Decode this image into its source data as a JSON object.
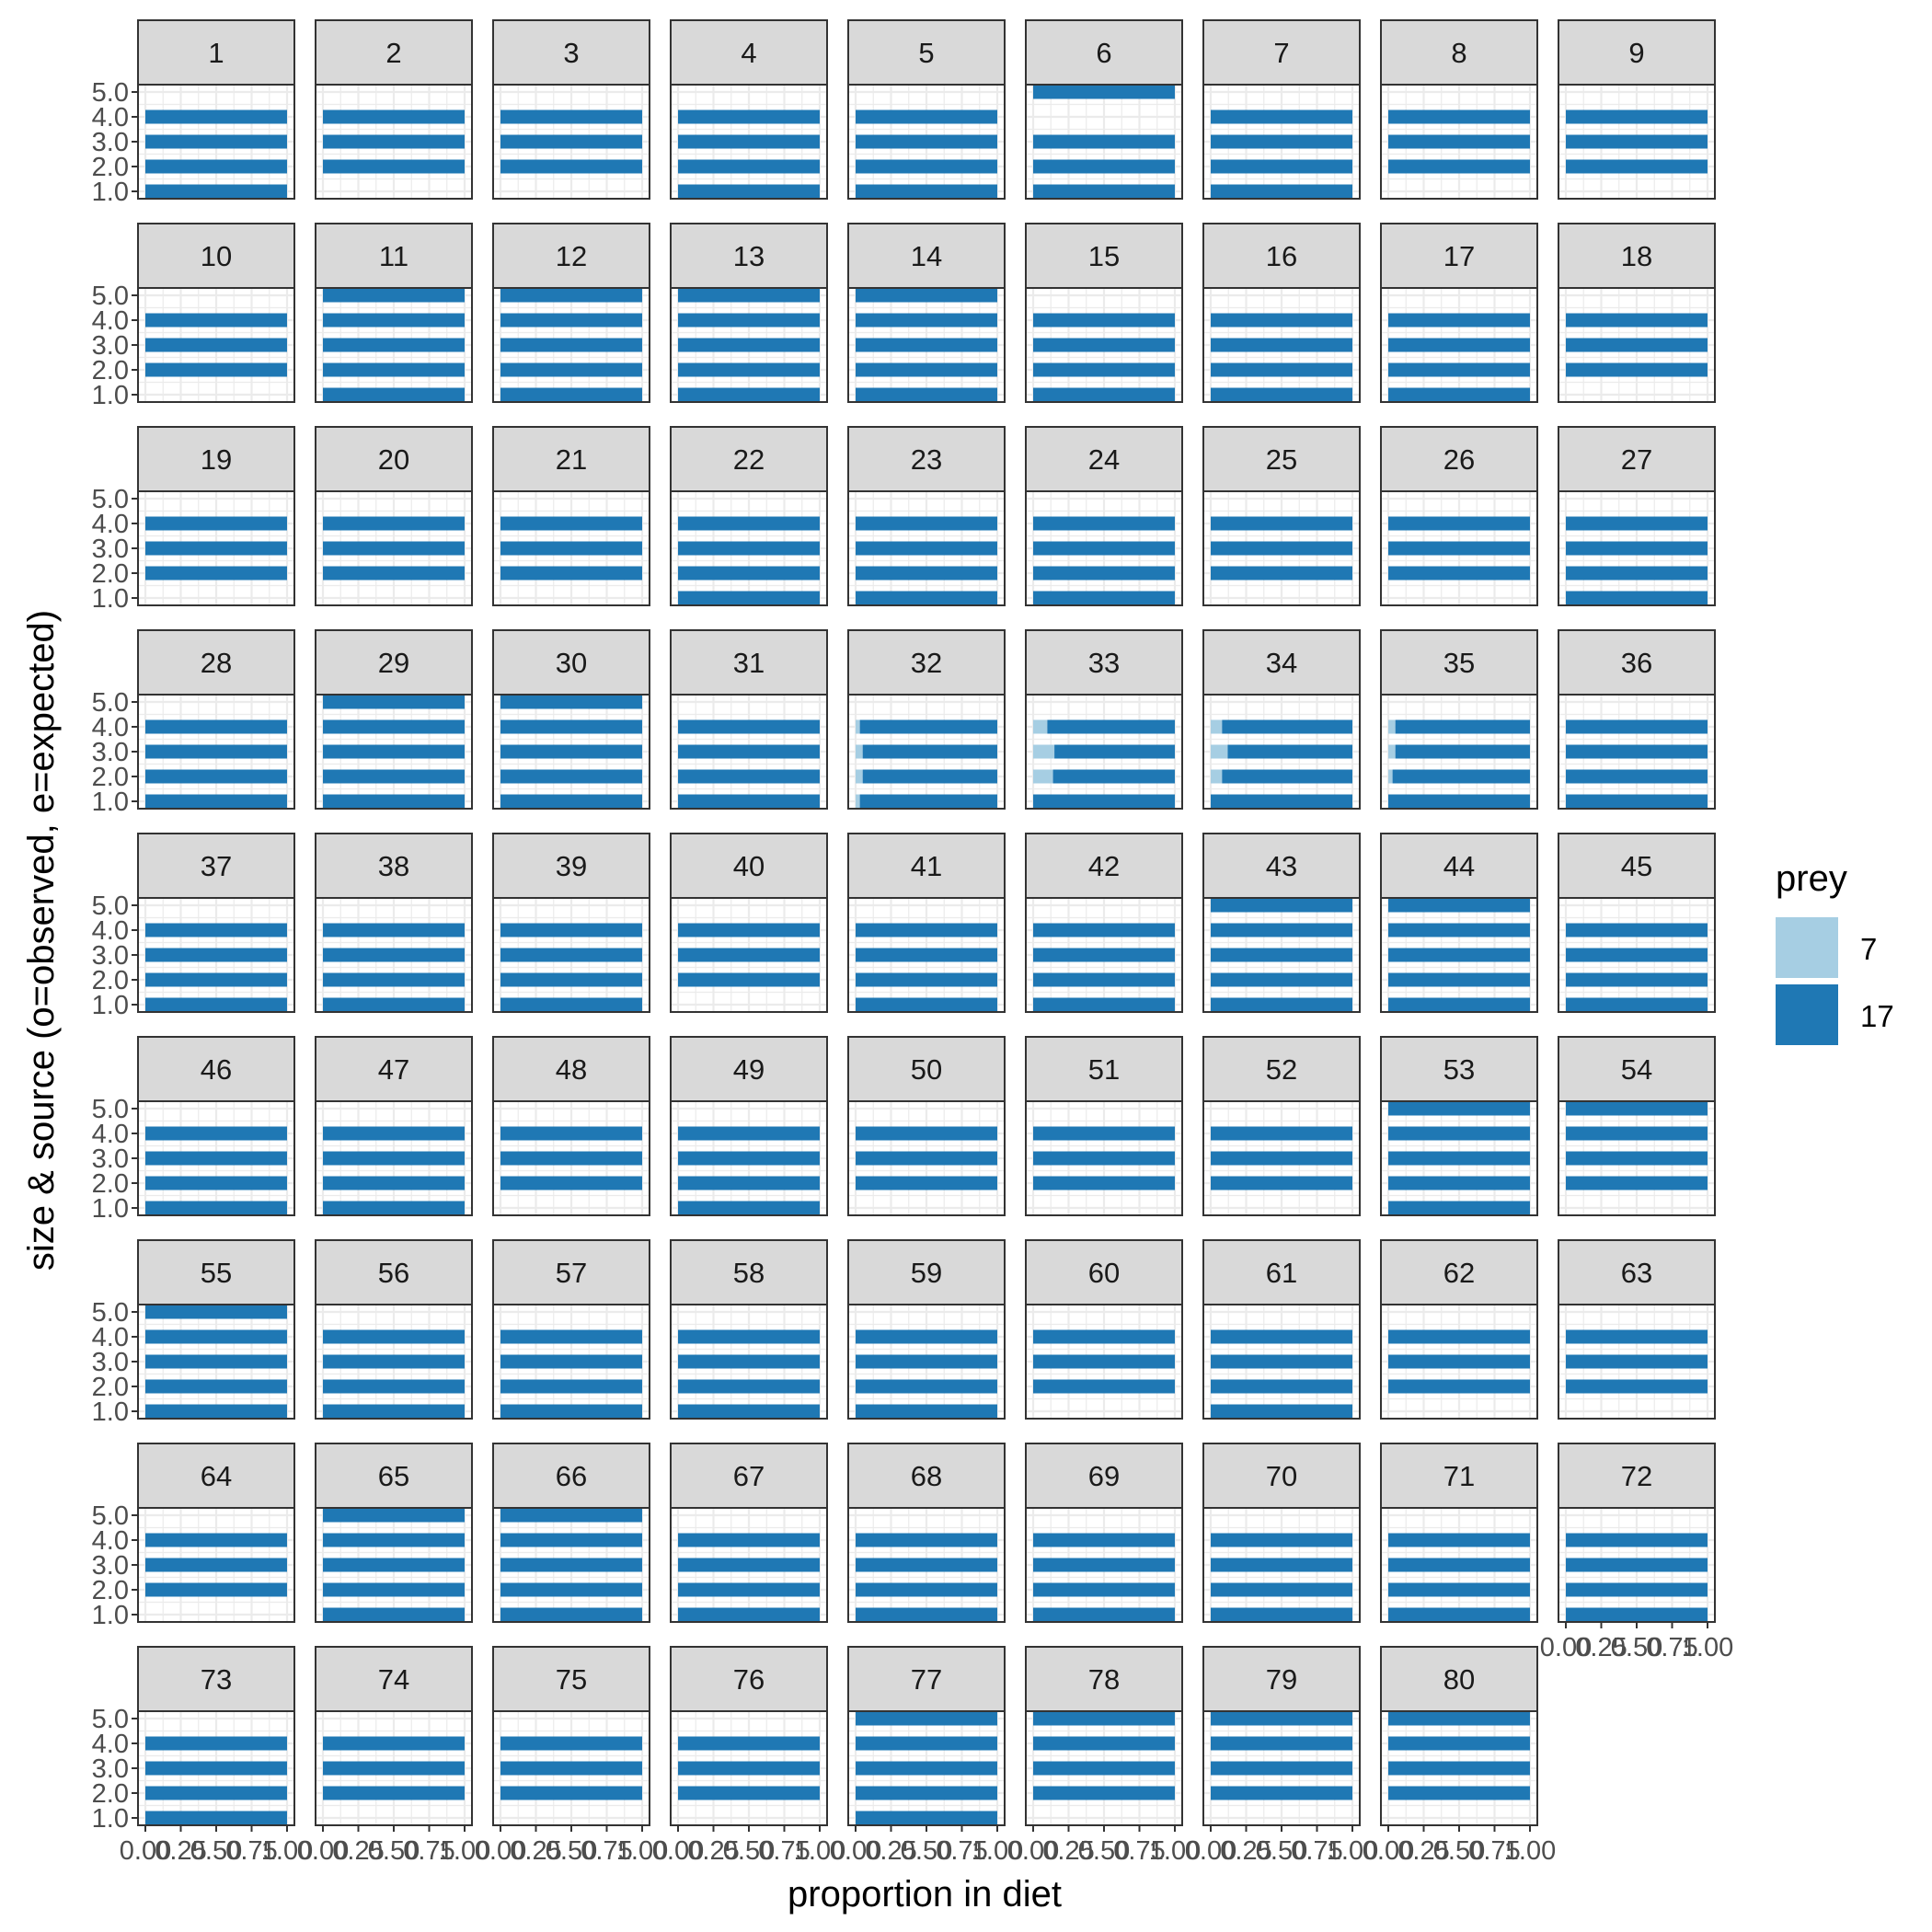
{
  "chart_data": {
    "type": "bar",
    "orientation": "horizontal",
    "layout": "facet_wrap",
    "facet_cols": 9,
    "xlabel": "proportion in diet",
    "ylabel": "size & source (o=observed, e=expected)",
    "xlim": [
      0,
      1
    ],
    "ylim": [
      1,
      5
    ],
    "x_ticks": [
      "0.00",
      "0.25",
      "0.50",
      "0.75",
      "1.00"
    ],
    "y_ticks": [
      "1.0",
      "2.0",
      "3.0",
      "4.0",
      "5.0"
    ],
    "grid": true,
    "legend": {
      "title": "prey",
      "position": "right",
      "items": [
        {
          "label": "7",
          "color": "#a6cee3"
        },
        {
          "label": "17",
          "color": "#1f78b4"
        }
      ]
    },
    "facets": [
      {
        "label": "1",
        "rows": [
          1,
          2,
          3,
          4
        ],
        "prey7": []
      },
      {
        "label": "2",
        "rows": [
          2,
          3,
          4
        ],
        "prey7": []
      },
      {
        "label": "3",
        "rows": [
          2,
          3,
          4
        ],
        "prey7": []
      },
      {
        "label": "4",
        "rows": [
          1,
          2,
          3,
          4
        ],
        "prey7": []
      },
      {
        "label": "5",
        "rows": [
          1,
          2,
          3,
          4
        ],
        "prey7": []
      },
      {
        "label": "6",
        "rows": [
          1,
          2,
          3,
          5
        ],
        "prey7": []
      },
      {
        "label": "7",
        "rows": [
          1,
          2,
          3,
          4
        ],
        "prey7": []
      },
      {
        "label": "8",
        "rows": [
          2,
          3,
          4
        ],
        "prey7": []
      },
      {
        "label": "9",
        "rows": [
          2,
          3,
          4
        ],
        "prey7": []
      },
      {
        "label": "10",
        "rows": [
          2,
          3,
          4
        ],
        "prey7": []
      },
      {
        "label": "11",
        "rows": [
          1,
          2,
          3,
          4,
          5
        ],
        "prey7": []
      },
      {
        "label": "12",
        "rows": [
          1,
          2,
          3,
          4,
          5
        ],
        "prey7": []
      },
      {
        "label": "13",
        "rows": [
          1,
          2,
          3,
          4,
          5
        ],
        "prey7": []
      },
      {
        "label": "14",
        "rows": [
          1,
          2,
          3,
          4,
          5
        ],
        "prey7": []
      },
      {
        "label": "15",
        "rows": [
          1,
          2,
          3,
          4
        ],
        "prey7": []
      },
      {
        "label": "16",
        "rows": [
          1,
          2,
          3,
          4
        ],
        "prey7": []
      },
      {
        "label": "17",
        "rows": [
          1,
          2,
          3,
          4
        ],
        "prey7": []
      },
      {
        "label": "18",
        "rows": [
          2,
          3,
          4
        ],
        "prey7": []
      },
      {
        "label": "19",
        "rows": [
          2,
          3,
          4
        ],
        "prey7": []
      },
      {
        "label": "20",
        "rows": [
          2,
          3,
          4
        ],
        "prey7": []
      },
      {
        "label": "21",
        "rows": [
          2,
          3,
          4
        ],
        "prey7": []
      },
      {
        "label": "22",
        "rows": [
          1,
          2,
          3,
          4
        ],
        "prey7": []
      },
      {
        "label": "23",
        "rows": [
          1,
          2,
          3,
          4
        ],
        "prey7": []
      },
      {
        "label": "24",
        "rows": [
          1,
          2,
          3,
          4
        ],
        "prey7": []
      },
      {
        "label": "25",
        "rows": [
          2,
          3,
          4
        ],
        "prey7": []
      },
      {
        "label": "26",
        "rows": [
          2,
          3,
          4
        ],
        "prey7": []
      },
      {
        "label": "27",
        "rows": [
          1,
          2,
          3,
          4
        ],
        "prey7": []
      },
      {
        "label": "28",
        "rows": [
          1,
          2,
          3,
          4
        ],
        "prey7": []
      },
      {
        "label": "29",
        "rows": [
          1,
          2,
          3,
          4,
          5
        ],
        "prey7": []
      },
      {
        "label": "30",
        "rows": [
          1,
          2,
          3,
          4,
          5
        ],
        "prey7": []
      },
      {
        "label": "31",
        "rows": [
          1,
          2,
          3,
          4
        ],
        "prey7": []
      },
      {
        "label": "32",
        "rows": [
          1,
          2,
          3,
          4
        ],
        "prey7": [
          {
            "row": 1,
            "value": 0.03
          },
          {
            "row": 2,
            "value": 0.05
          },
          {
            "row": 3,
            "value": 0.05
          },
          {
            "row": 4,
            "value": 0.03
          }
        ]
      },
      {
        "label": "33",
        "rows": [
          1,
          2,
          3,
          4
        ],
        "prey7": [
          {
            "row": 2,
            "value": 0.14
          },
          {
            "row": 3,
            "value": 0.15
          },
          {
            "row": 4,
            "value": 0.1
          }
        ]
      },
      {
        "label": "34",
        "rows": [
          1,
          2,
          3,
          4
        ],
        "prey7": [
          {
            "row": 2,
            "value": 0.08
          },
          {
            "row": 3,
            "value": 0.12
          },
          {
            "row": 4,
            "value": 0.08
          }
        ]
      },
      {
        "label": "35",
        "rows": [
          1,
          2,
          3,
          4
        ],
        "prey7": [
          {
            "row": 2,
            "value": 0.03
          },
          {
            "row": 3,
            "value": 0.05
          },
          {
            "row": 4,
            "value": 0.05
          }
        ]
      },
      {
        "label": "36",
        "rows": [
          1,
          2,
          3,
          4
        ],
        "prey7": []
      },
      {
        "label": "37",
        "rows": [
          1,
          2,
          3,
          4
        ],
        "prey7": []
      },
      {
        "label": "38",
        "rows": [
          1,
          2,
          3,
          4
        ],
        "prey7": []
      },
      {
        "label": "39",
        "rows": [
          1,
          2,
          3,
          4
        ],
        "prey7": []
      },
      {
        "label": "40",
        "rows": [
          2,
          3,
          4
        ],
        "prey7": []
      },
      {
        "label": "41",
        "rows": [
          1,
          2,
          3,
          4
        ],
        "prey7": []
      },
      {
        "label": "42",
        "rows": [
          1,
          2,
          3,
          4
        ],
        "prey7": []
      },
      {
        "label": "43",
        "rows": [
          1,
          2,
          3,
          4,
          5
        ],
        "prey7": []
      },
      {
        "label": "44",
        "rows": [
          1,
          2,
          3,
          4,
          5
        ],
        "prey7": []
      },
      {
        "label": "45",
        "rows": [
          1,
          2,
          3,
          4
        ],
        "prey7": []
      },
      {
        "label": "46",
        "rows": [
          1,
          2,
          3,
          4
        ],
        "prey7": []
      },
      {
        "label": "47",
        "rows": [
          1,
          2,
          3,
          4
        ],
        "prey7": []
      },
      {
        "label": "48",
        "rows": [
          2,
          3,
          4
        ],
        "prey7": []
      },
      {
        "label": "49",
        "rows": [
          1,
          2,
          3,
          4
        ],
        "prey7": []
      },
      {
        "label": "50",
        "rows": [
          2,
          3,
          4
        ],
        "prey7": []
      },
      {
        "label": "51",
        "rows": [
          2,
          3,
          4
        ],
        "prey7": []
      },
      {
        "label": "52",
        "rows": [
          2,
          3,
          4
        ],
        "prey7": []
      },
      {
        "label": "53",
        "rows": [
          1,
          2,
          3,
          4,
          5
        ],
        "prey7": []
      },
      {
        "label": "54",
        "rows": [
          2,
          3,
          4,
          5
        ],
        "prey7": []
      },
      {
        "label": "55",
        "rows": [
          1,
          2,
          3,
          4,
          5
        ],
        "prey7": []
      },
      {
        "label": "56",
        "rows": [
          1,
          2,
          3,
          4
        ],
        "prey7": []
      },
      {
        "label": "57",
        "rows": [
          1,
          2,
          3,
          4
        ],
        "prey7": []
      },
      {
        "label": "58",
        "rows": [
          1,
          2,
          3,
          4
        ],
        "prey7": []
      },
      {
        "label": "59",
        "rows": [
          1,
          2,
          3,
          4
        ],
        "prey7": []
      },
      {
        "label": "60",
        "rows": [
          2,
          3,
          4
        ],
        "prey7": []
      },
      {
        "label": "61",
        "rows": [
          1,
          2,
          3,
          4
        ],
        "prey7": []
      },
      {
        "label": "62",
        "rows": [
          2,
          3,
          4
        ],
        "prey7": []
      },
      {
        "label": "63",
        "rows": [
          2,
          3,
          4
        ],
        "prey7": []
      },
      {
        "label": "64",
        "rows": [
          2,
          3,
          4
        ],
        "prey7": []
      },
      {
        "label": "65",
        "rows": [
          1,
          2,
          3,
          4,
          5
        ],
        "prey7": []
      },
      {
        "label": "66",
        "rows": [
          1,
          2,
          3,
          4,
          5
        ],
        "prey7": []
      },
      {
        "label": "67",
        "rows": [
          1,
          2,
          3,
          4
        ],
        "prey7": []
      },
      {
        "label": "68",
        "rows": [
          1,
          2,
          3,
          4
        ],
        "prey7": []
      },
      {
        "label": "69",
        "rows": [
          1,
          2,
          3,
          4
        ],
        "prey7": []
      },
      {
        "label": "70",
        "rows": [
          1,
          2,
          3,
          4
        ],
        "prey7": []
      },
      {
        "label": "71",
        "rows": [
          1,
          2,
          3,
          4
        ],
        "prey7": []
      },
      {
        "label": "72",
        "rows": [
          1,
          2,
          3,
          4
        ],
        "prey7": []
      },
      {
        "label": "73",
        "rows": [
          1,
          2,
          3,
          4
        ],
        "prey7": []
      },
      {
        "label": "74",
        "rows": [
          2,
          3,
          4
        ],
        "prey7": []
      },
      {
        "label": "75",
        "rows": [
          2,
          3,
          4
        ],
        "prey7": []
      },
      {
        "label": "76",
        "rows": [
          2,
          3,
          4
        ],
        "prey7": []
      },
      {
        "label": "77",
        "rows": [
          1,
          2,
          3,
          4,
          5
        ],
        "prey7": []
      },
      {
        "label": "78",
        "rows": [
          2,
          3,
          4,
          5
        ],
        "prey7": []
      },
      {
        "label": "79",
        "rows": [
          2,
          3,
          4,
          5
        ],
        "prey7": []
      },
      {
        "label": "80",
        "rows": [
          2,
          3,
          4,
          5
        ],
        "prey7": []
      }
    ]
  }
}
